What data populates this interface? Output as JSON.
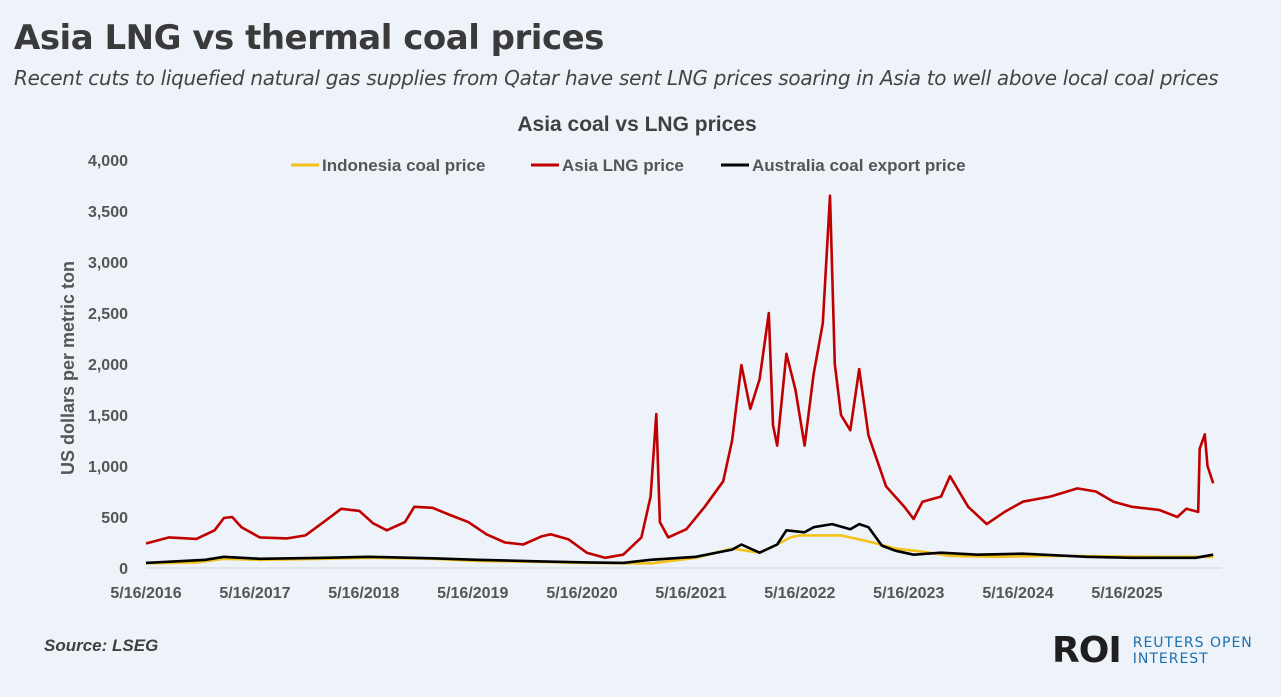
{
  "header": {
    "title": "Asia LNG vs thermal coal prices",
    "subtitle": "Recent cuts to liquefied natural gas supplies from Qatar have sent LNG prices soaring in Asia to well above local coal prices"
  },
  "footer": {
    "source": "Source:  LSEG",
    "logo_mark": "ROI",
    "logo_line1": "REUTERS OPEN",
    "logo_line2": "INTEREST"
  },
  "chart_data": {
    "type": "line",
    "title": "Asia coal vs LNG prices",
    "ylabel": "US dollars per metric ton",
    "xlabel": "",
    "ylim": [
      0,
      4000
    ],
    "yticks": [
      "0",
      "500",
      "1,000",
      "1,500",
      "2,000",
      "2,500",
      "3,000",
      "3,500",
      "4,000"
    ],
    "ytick_values": [
      0,
      500,
      1000,
      1500,
      2000,
      2500,
      3000,
      3500,
      4000
    ],
    "xticks": [
      "5/16/2016",
      "5/16/2017",
      "5/16/2018",
      "5/16/2019",
      "5/16/2020",
      "5/16/2021",
      "5/16/2022",
      "5/16/2023",
      "5/16/2024",
      "5/16/2025"
    ],
    "xtick_dates": [
      "2016-05-16",
      "2017-05-16",
      "2018-05-16",
      "2019-05-16",
      "2020-05-16",
      "2021-05-16",
      "2022-05-16",
      "2023-05-16",
      "2024-05-16",
      "2025-05-16"
    ],
    "grid": false,
    "legend_position": "top",
    "series": [
      {
        "name": "Indonesia coal price",
        "color": "#f2c21b",
        "points": [
          [
            "2016-05-16",
            45
          ],
          [
            "2016-11-01",
            55
          ],
          [
            "2017-02-01",
            90
          ],
          [
            "2017-06-01",
            80
          ],
          [
            "2018-01-01",
            90
          ],
          [
            "2018-06-01",
            100
          ],
          [
            "2019-01-01",
            90
          ],
          [
            "2019-06-01",
            70
          ],
          [
            "2020-01-01",
            60
          ],
          [
            "2020-06-01",
            50
          ],
          [
            "2021-01-01",
            45
          ],
          [
            "2021-06-01",
            100
          ],
          [
            "2021-10-01",
            190
          ],
          [
            "2022-01-01",
            150
          ],
          [
            "2022-03-01",
            230
          ],
          [
            "2022-04-15",
            300
          ],
          [
            "2022-05-15",
            320
          ],
          [
            "2022-10-01",
            320
          ],
          [
            "2022-12-01",
            280
          ],
          [
            "2023-01-15",
            250
          ],
          [
            "2023-04-01",
            190
          ],
          [
            "2023-07-01",
            160
          ],
          [
            "2023-10-01",
            120
          ],
          [
            "2024-03-01",
            110
          ],
          [
            "2024-09-01",
            120
          ],
          [
            "2025-03-01",
            115
          ],
          [
            "2025-09-01",
            110
          ],
          [
            "2026-03-01",
            110
          ]
        ]
      },
      {
        "name": "Asia LNG price",
        "color": "#c00000",
        "points": [
          [
            "2016-05-16",
            240
          ],
          [
            "2016-08-01",
            300
          ],
          [
            "2016-11-01",
            285
          ],
          [
            "2017-01-01",
            370
          ],
          [
            "2017-02-01",
            490
          ],
          [
            "2017-03-01",
            500
          ],
          [
            "2017-04-01",
            400
          ],
          [
            "2017-06-01",
            300
          ],
          [
            "2017-09-01",
            290
          ],
          [
            "2017-11-01",
            320
          ],
          [
            "2018-01-01",
            450
          ],
          [
            "2018-03-01",
            580
          ],
          [
            "2018-05-01",
            560
          ],
          [
            "2018-06-15",
            440
          ],
          [
            "2018-08-01",
            370
          ],
          [
            "2018-10-01",
            450
          ],
          [
            "2018-11-01",
            600
          ],
          [
            "2019-01-01",
            590
          ],
          [
            "2019-03-01",
            520
          ],
          [
            "2019-05-01",
            450
          ],
          [
            "2019-07-01",
            330
          ],
          [
            "2019-09-01",
            250
          ],
          [
            "2019-11-01",
            230
          ],
          [
            "2020-01-01",
            310
          ],
          [
            "2020-02-01",
            330
          ],
          [
            "2020-04-01",
            280
          ],
          [
            "2020-06-01",
            150
          ],
          [
            "2020-08-01",
            100
          ],
          [
            "2020-10-01",
            130
          ],
          [
            "2020-12-01",
            300
          ],
          [
            "2021-01-01",
            700
          ],
          [
            "2021-01-20",
            1510
          ],
          [
            "2021-02-01",
            450
          ],
          [
            "2021-03-01",
            300
          ],
          [
            "2021-05-01",
            380
          ],
          [
            "2021-07-01",
            600
          ],
          [
            "2021-09-01",
            850
          ],
          [
            "2021-10-01",
            1250
          ],
          [
            "2021-11-01",
            1990
          ],
          [
            "2021-12-01",
            1560
          ],
          [
            "2022-01-01",
            1850
          ],
          [
            "2022-02-01",
            2500
          ],
          [
            "2022-02-15",
            1400
          ],
          [
            "2022-03-01",
            1200
          ],
          [
            "2022-04-01",
            2100
          ],
          [
            "2022-05-01",
            1750
          ],
          [
            "2022-06-01",
            1200
          ],
          [
            "2022-07-01",
            1900
          ],
          [
            "2022-08-01",
            2400
          ],
          [
            "2022-08-25",
            3650
          ],
          [
            "2022-09-10",
            2000
          ],
          [
            "2022-10-01",
            1500
          ],
          [
            "2022-11-01",
            1350
          ],
          [
            "2022-12-01",
            1950
          ],
          [
            "2023-01-01",
            1300
          ],
          [
            "2023-03-01",
            800
          ],
          [
            "2023-05-01",
            600
          ],
          [
            "2023-06-01",
            480
          ],
          [
            "2023-07-01",
            650
          ],
          [
            "2023-09-01",
            700
          ],
          [
            "2023-10-01",
            900
          ],
          [
            "2023-12-01",
            600
          ],
          [
            "2024-02-01",
            430
          ],
          [
            "2024-04-01",
            550
          ],
          [
            "2024-06-01",
            650
          ],
          [
            "2024-09-01",
            700
          ],
          [
            "2024-12-01",
            780
          ],
          [
            "2025-02-01",
            750
          ],
          [
            "2025-04-01",
            650
          ],
          [
            "2025-06-01",
            600
          ],
          [
            "2025-09-01",
            570
          ],
          [
            "2025-11-01",
            500
          ],
          [
            "2025-12-01",
            580
          ],
          [
            "2026-01-10",
            550
          ],
          [
            "2026-01-15",
            1170
          ],
          [
            "2026-02-01",
            1310
          ],
          [
            "2026-02-10",
            1000
          ],
          [
            "2026-03-01",
            830
          ]
        ]
      },
      {
        "name": "Australia coal export price",
        "color": "#000000",
        "points": [
          [
            "2016-05-16",
            50
          ],
          [
            "2016-12-01",
            80
          ],
          [
            "2017-02-01",
            110
          ],
          [
            "2017-06-01",
            90
          ],
          [
            "2018-01-01",
            100
          ],
          [
            "2018-06-01",
            110
          ],
          [
            "2019-01-01",
            95
          ],
          [
            "2019-06-01",
            80
          ],
          [
            "2020-01-01",
            65
          ],
          [
            "2020-06-01",
            55
          ],
          [
            "2020-10-01",
            50
          ],
          [
            "2021-01-01",
            80
          ],
          [
            "2021-06-01",
            110
          ],
          [
            "2021-10-01",
            180
          ],
          [
            "2021-11-01",
            230
          ],
          [
            "2022-01-01",
            150
          ],
          [
            "2022-03-01",
            230
          ],
          [
            "2022-04-01",
            370
          ],
          [
            "2022-06-01",
            350
          ],
          [
            "2022-07-01",
            400
          ],
          [
            "2022-09-01",
            430
          ],
          [
            "2022-11-01",
            380
          ],
          [
            "2022-12-01",
            430
          ],
          [
            "2023-01-01",
            400
          ],
          [
            "2023-02-15",
            220
          ],
          [
            "2023-04-01",
            170
          ],
          [
            "2023-06-01",
            130
          ],
          [
            "2023-09-01",
            150
          ],
          [
            "2024-01-01",
            130
          ],
          [
            "2024-06-01",
            140
          ],
          [
            "2025-01-01",
            110
          ],
          [
            "2025-06-01",
            100
          ],
          [
            "2026-01-01",
            100
          ],
          [
            "2026-03-01",
            130
          ]
        ]
      }
    ]
  }
}
